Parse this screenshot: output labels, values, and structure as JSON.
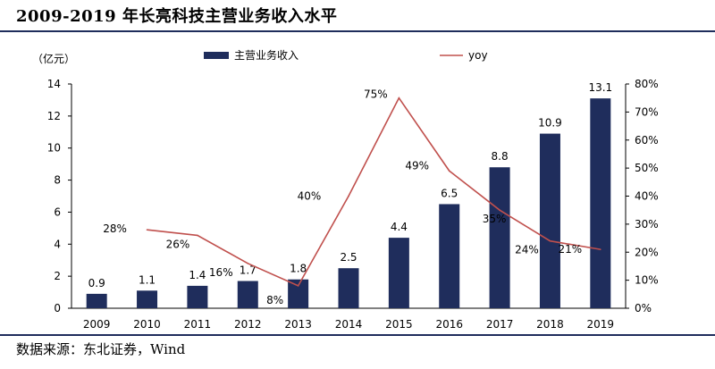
{
  "title": "2009-2019 年长亮科技主营业务收入水平",
  "source": "数据来源：东北证券，Wind",
  "colors": {
    "bar": "#1f2d5c",
    "line": "#c0504d",
    "rule": "#1f2d5c"
  },
  "chart_data": {
    "type": "bar",
    "categories": [
      "2009",
      "2010",
      "2011",
      "2012",
      "2013",
      "2014",
      "2015",
      "2016",
      "2017",
      "2018",
      "2019"
    ],
    "series": [
      {
        "name": "主营业务收入",
        "type": "bar",
        "axis": "left",
        "values": [
          0.9,
          1.1,
          1.4,
          1.7,
          1.8,
          2.5,
          4.4,
          6.5,
          8.8,
          10.9,
          13.1
        ],
        "labels": [
          "0.9",
          "1.1",
          "1.4",
          "1.7",
          "1.8",
          "2.5",
          "4.4",
          "6.5",
          "8.8",
          "10.9",
          "13.1"
        ]
      },
      {
        "name": "yoy",
        "type": "line",
        "axis": "right",
        "values": [
          null,
          28,
          26,
          16,
          8,
          40,
          75,
          49,
          35,
          24,
          21
        ],
        "labels": [
          null,
          "28%",
          "26%",
          "16%",
          "8%",
          "40%",
          "75%",
          "49%",
          "35%",
          "24%",
          "21%"
        ]
      }
    ],
    "y_left": {
      "unit_label": "（亿元）",
      "ylim": [
        0,
        14
      ],
      "ticks": [
        "0",
        "2",
        "4",
        "6",
        "8",
        "10",
        "12",
        "14"
      ]
    },
    "y_right": {
      "ylim": [
        0,
        80
      ],
      "ticks": [
        "0%",
        "10%",
        "20%",
        "30%",
        "40%",
        "50%",
        "60%",
        "70%",
        "80%"
      ]
    },
    "legend_placement": "top",
    "grid": false
  }
}
